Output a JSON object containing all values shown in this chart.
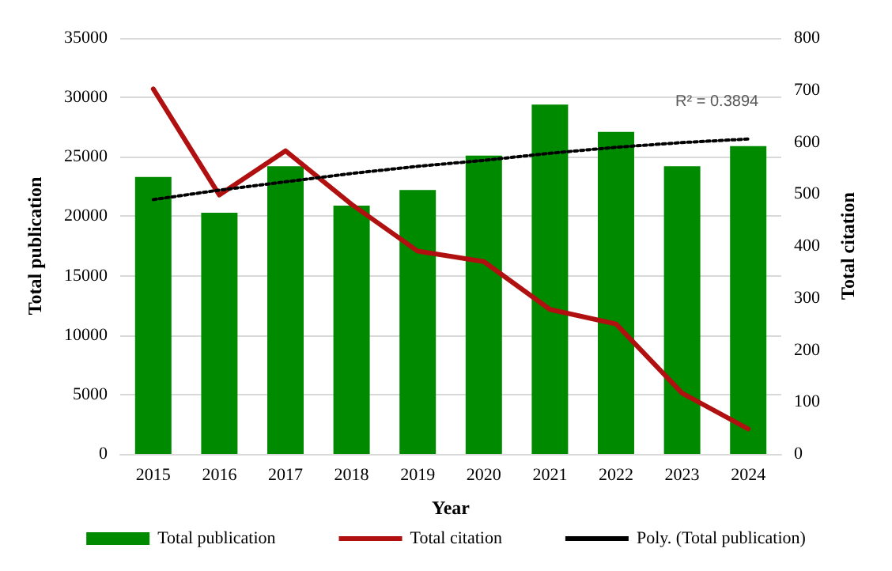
{
  "chart_data": {
    "type": "bar",
    "xlabel": "Year",
    "ylabel": "Total publication",
    "y2label": "Total citation",
    "categories": [
      "2015",
      "2016",
      "2017",
      "2018",
      "2019",
      "2020",
      "2021",
      "2022",
      "2023",
      "2024"
    ],
    "series": [
      {
        "name": "Total publication",
        "color": "#008a00",
        "values": [
          23300,
          20300,
          24200,
          20900,
          22200,
          25100,
          29400,
          27100,
          24200,
          25900
        ]
      },
      {
        "name": "Total citation",
        "type": "line",
        "axis": "y2",
        "color": "#b01010",
        "marker": "none",
        "line_style": "solid",
        "values": [
          702,
          498,
          583,
          480,
          390,
          370,
          278,
          250,
          117,
          48
        ]
      },
      {
        "name": "Poly. (Total publication)",
        "type": "line",
        "color": "#000000",
        "marker": "none",
        "line_style": "dotted",
        "values": [
          21400,
          22200,
          22900,
          23600,
          24200,
          24700,
          25300,
          25800,
          26200,
          26500
        ]
      }
    ],
    "ylim": [
      0,
      35000
    ],
    "yticks": [
      0,
      5000,
      10000,
      15000,
      20000,
      25000,
      30000,
      35000
    ],
    "y2lim": [
      0,
      800
    ],
    "y2ticks": [
      0,
      100,
      200,
      300,
      400,
      500,
      600,
      700,
      800
    ],
    "annotations": [
      {
        "text": "R² = 0.3894",
        "x": "2023",
        "y": 26150
      }
    ],
    "grid": "y",
    "legend": "bottom"
  }
}
